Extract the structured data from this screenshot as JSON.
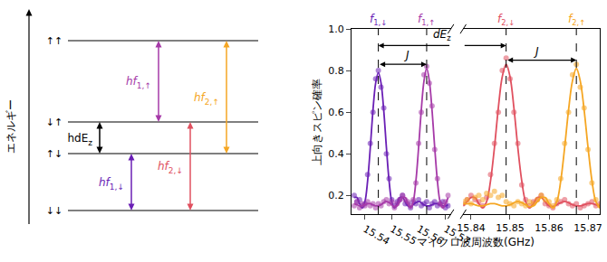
{
  "diagram": {
    "axis_label": "エネルギー",
    "levels": [
      "↑↑",
      "↓↑",
      "↑↓",
      "↓↓"
    ],
    "transitions": [
      {
        "from": "↓↓",
        "to": "↑↓",
        "label": {
          "text": "hf",
          "sub": "1,↓"
        },
        "color": "#6a1fb5"
      },
      {
        "from": "↓↓",
        "to": "↓↑",
        "label": {
          "text": "hf",
          "sub": "2,↓"
        },
        "color": "#e0505f"
      },
      {
        "from": "↓↑",
        "to": "↑↑",
        "label": {
          "text": "hf",
          "sub": "1,↑"
        },
        "color": "#a63aa8"
      },
      {
        "from": "↑↓",
        "to": "↑↑",
        "label": {
          "text": "hf",
          "sub": "2,↑"
        },
        "color": "#f5a623"
      }
    ],
    "splitting": {
      "from": "↑↓",
      "to": "↓↑",
      "label": {
        "text": "hdE",
        "sub": "z"
      },
      "color": "#000000"
    }
  },
  "chart_data": {
    "type": "scatter",
    "ylabel": "上向きスピン確率",
    "xlabel": "マイクロ波周波数(GHz)",
    "grid": false,
    "ylim": [
      0.11,
      1.0
    ],
    "yticks": [
      0.2,
      0.4,
      0.6,
      0.8,
      {
        "value": 1,
        "label": "1.0"
      }
    ],
    "x_panels": [
      {
        "xlim": [
          15.535,
          15.572
        ],
        "xticks": [
          15.54,
          15.55,
          15.56,
          15.57
        ],
        "x": [
          15.536,
          15.537,
          15.538,
          15.539,
          15.54,
          15.541,
          15.542,
          15.543,
          15.544,
          15.545,
          15.546,
          15.547,
          15.548,
          15.549,
          15.55,
          15.551,
          15.552,
          15.553,
          15.554,
          15.555,
          15.556,
          15.557,
          15.558,
          15.559,
          15.56,
          15.561,
          15.562,
          15.563,
          15.564,
          15.565,
          15.566,
          15.567,
          15.568,
          15.569,
          15.57,
          15.571
        ]
      },
      {
        "xlim": [
          15.838,
          15.873
        ],
        "xticks": [
          15.84,
          15.85,
          15.86,
          15.87
        ],
        "x": [
          15.838,
          15.839,
          15.84,
          15.841,
          15.842,
          15.843,
          15.844,
          15.845,
          15.846,
          15.847,
          15.848,
          15.849,
          15.85,
          15.851,
          15.852,
          15.853,
          15.854,
          15.855,
          15.856,
          15.857,
          15.858,
          15.859,
          15.86,
          15.861,
          15.862,
          15.863,
          15.864,
          15.865,
          15.866,
          15.867,
          15.868,
          15.869,
          15.87,
          15.871,
          15.872,
          15.873
        ]
      }
    ],
    "series": [
      {
        "panel": 0,
        "color": "#6a1fb5",
        "marker": "circle",
        "line_style": "solid",
        "values": [
          0.2,
          0.17,
          0.18,
          0.15,
          0.16,
          0.3,
          0.45,
          0.6,
          0.76,
          0.8,
          0.72,
          0.62,
          0.4,
          0.28,
          0.18,
          0.15,
          0.17,
          0.18,
          0.2,
          0.16,
          0.16,
          0.14,
          0.17,
          0.16,
          0.18,
          0.15,
          0.16,
          0.17,
          0.14,
          0.16,
          0.17,
          0.15,
          0.16,
          0.17,
          0.14,
          0.15
        ],
        "fit": [
          0.19,
          0.19,
          0.16,
          0.14,
          0.17,
          0.27,
          0.43,
          0.61,
          0.74,
          0.79,
          0.74,
          0.61,
          0.43,
          0.27,
          0.17,
          0.14,
          0.16,
          0.19,
          0.19,
          0.17,
          0.15,
          0.145,
          0.155,
          0.165,
          0.17,
          0.165,
          0.155,
          0.15,
          0.15,
          0.155,
          0.16,
          0.16,
          0.155,
          0.15,
          0.15,
          0.155
        ]
      },
      {
        "panel": 0,
        "color": "#a63aa8",
        "marker": "circle",
        "line_style": "solid",
        "values": [
          0.15,
          0.17,
          0.14,
          0.16,
          0.15,
          0.17,
          0.15,
          0.16,
          0.14,
          0.16,
          0.15,
          0.17,
          0.18,
          0.16,
          0.17,
          0.14,
          0.16,
          0.18,
          0.2,
          0.18,
          0.17,
          0.15,
          0.18,
          0.26,
          0.45,
          0.6,
          0.78,
          0.82,
          0.74,
          0.63,
          0.42,
          0.28,
          0.16,
          0.15,
          0.17,
          0.2
        ],
        "fit": [
          0.16,
          0.155,
          0.15,
          0.15,
          0.155,
          0.16,
          0.16,
          0.155,
          0.15,
          0.15,
          0.155,
          0.165,
          0.17,
          0.165,
          0.155,
          0.145,
          0.15,
          0.17,
          0.19,
          0.19,
          0.16,
          0.14,
          0.17,
          0.27,
          0.43,
          0.61,
          0.75,
          0.81,
          0.75,
          0.61,
          0.43,
          0.27,
          0.17,
          0.14,
          0.16,
          0.19
        ]
      },
      {
        "panel": 1,
        "color": "#e0505f",
        "marker": "circle",
        "line_style": "solid",
        "values": [
          0.16,
          0.18,
          0.2,
          0.18,
          0.17,
          0.15,
          0.19,
          0.3,
          0.45,
          0.6,
          0.8,
          0.86,
          0.76,
          0.6,
          0.45,
          0.25,
          0.18,
          0.15,
          0.17,
          0.18,
          0.2,
          0.16,
          0.15,
          0.14,
          0.16,
          0.17,
          0.18,
          0.16,
          0.15,
          0.16,
          0.14,
          0.15,
          0.16,
          0.17,
          0.15,
          0.16
        ],
        "fit": [
          0.15,
          0.17,
          0.19,
          0.19,
          0.16,
          0.14,
          0.17,
          0.27,
          0.43,
          0.62,
          0.77,
          0.83,
          0.77,
          0.62,
          0.43,
          0.27,
          0.17,
          0.14,
          0.16,
          0.19,
          0.19,
          0.17,
          0.15,
          0.145,
          0.155,
          0.165,
          0.17,
          0.165,
          0.155,
          0.15,
          0.15,
          0.155,
          0.16,
          0.16,
          0.155,
          0.15
        ]
      },
      {
        "panel": 1,
        "color": "#f5a623",
        "marker": "circle",
        "line_style": "solid",
        "values": [
          0.17,
          0.18,
          0.16,
          0.19,
          0.2,
          0.18,
          0.21,
          0.2,
          0.22,
          0.19,
          0.2,
          0.17,
          0.16,
          0.15,
          0.17,
          0.16,
          0.15,
          0.17,
          0.16,
          0.18,
          0.2,
          0.18,
          0.17,
          0.15,
          0.18,
          0.28,
          0.45,
          0.6,
          0.78,
          0.83,
          0.72,
          0.62,
          0.42,
          0.26,
          0.18,
          0.15
        ],
        "fit": [
          0.16,
          0.16,
          0.16,
          0.155,
          0.15,
          0.15,
          0.155,
          0.16,
          0.16,
          0.155,
          0.15,
          0.15,
          0.155,
          0.165,
          0.17,
          0.165,
          0.155,
          0.145,
          0.15,
          0.17,
          0.19,
          0.19,
          0.16,
          0.14,
          0.17,
          0.27,
          0.43,
          0.61,
          0.75,
          0.81,
          0.75,
          0.61,
          0.43,
          0.27,
          0.17,
          0.14
        ]
      }
    ],
    "vlines": [
      {
        "panel": 0,
        "x": 15.545,
        "label": {
          "text": "f",
          "sub": "1,↓"
        },
        "color": "#6a1fb5"
      },
      {
        "panel": 0,
        "x": 15.563,
        "label": {
          "text": "f",
          "sub": "1,↑"
        },
        "color": "#a63aa8"
      },
      {
        "panel": 1,
        "x": 15.849,
        "label": {
          "text": "f",
          "sub": "2,↓"
        },
        "color": "#e0505f"
      },
      {
        "panel": 1,
        "x": 15.867,
        "label": {
          "text": "f",
          "sub": "2,↑"
        },
        "color": "#f5a623"
      }
    ],
    "intervals": [
      {
        "from": {
          "panel": 0,
          "x": 15.545
        },
        "to": {
          "panel": 0,
          "x": 15.563
        },
        "y": 0.83,
        "label": {
          "text": "J",
          "sub": ""
        }
      },
      {
        "from": {
          "panel": 0,
          "x": 15.545
        },
        "to": {
          "panel": 1,
          "x": 15.849
        },
        "y": 0.92,
        "label": {
          "text": "dE",
          "sub": "z"
        }
      },
      {
        "from": {
          "panel": 1,
          "x": 15.849
        },
        "to": {
          "panel": 1,
          "x": 15.867
        },
        "y": 0.85,
        "label": {
          "text": "J",
          "sub": ""
        }
      }
    ]
  }
}
